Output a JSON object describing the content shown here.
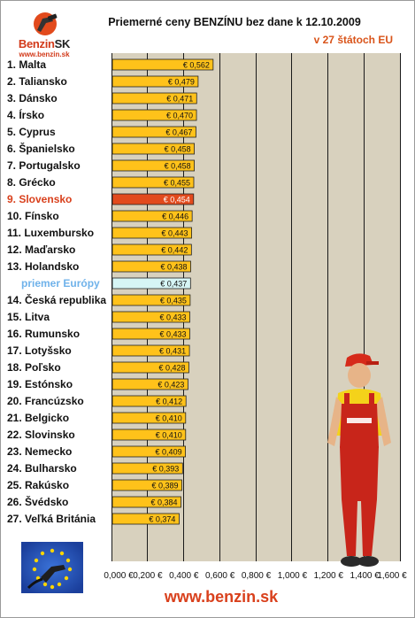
{
  "header": {
    "logo_brand": "Benzin",
    "logo_brand_suffix": "SK",
    "logo_url": "www.benzin.sk",
    "title": "Priemerné ceny BENZÍNU bez dane k 12.10.2009",
    "subtitle": "v 27 štátoch EU"
  },
  "footer": {
    "url": "www.benzin.sk"
  },
  "colors": {
    "bar": "#ffc21a",
    "bar_highlight": "#e24a1c",
    "bar_average": "#d6f5f5",
    "plot_bg": "#d8d1be",
    "highlight_text": "#d9401c",
    "average_text": "#6fb2ea"
  },
  "icons": [
    "benzin-logo-icon",
    "eu-flag-fuel-nozzle-icon",
    "mechanic-mascot-icon"
  ],
  "chart_data": {
    "type": "bar",
    "orientation": "horizontal",
    "title": "Priemerné ceny BENZÍNU bez dane k 12.10.2009",
    "subtitle": "v 27 štátoch EU",
    "categories": [
      "1. Malta",
      "2. Taliansko",
      "3. Dánsko",
      "4. Írsko",
      "5. Cyprus",
      "6. Španielsko",
      "7. Portugalsko",
      "8. Grécko",
      "9. Slovensko",
      "10. Fínsko",
      "11. Luxembursko",
      "12. Maďarsko",
      "13. Holandsko",
      "priemer Európy",
      "14. Česká republika",
      "15. Litva",
      "16. Rumunsko",
      "17. Lotyšsko",
      "18. Poľsko",
      "19. Estónsko",
      "20. Francúzsko",
      "21. Belgicko",
      "22. Slovinsko",
      "23. Nemecko",
      "24. Bulharsko",
      "25. Rakúsko",
      "26. Švédsko",
      "27. Veľká Británia"
    ],
    "values": [
      0.562,
      0.479,
      0.471,
      0.47,
      0.467,
      0.458,
      0.458,
      0.455,
      0.454,
      0.446,
      0.443,
      0.442,
      0.438,
      0.437,
      0.435,
      0.433,
      0.433,
      0.431,
      0.428,
      0.423,
      0.412,
      0.41,
      0.41,
      0.409,
      0.393,
      0.389,
      0.384,
      0.374
    ],
    "value_labels": [
      "€ 0,562",
      "€ 0,479",
      "€ 0,471",
      "€ 0,470",
      "€ 0,467",
      "€ 0,458",
      "€ 0,458",
      "€ 0,455",
      "€ 0,454",
      "€ 0,446",
      "€ 0,443",
      "€ 0,442",
      "€ 0,438",
      "€ 0,437",
      "€ 0,435",
      "€ 0,433",
      "€ 0,433",
      "€ 0,431",
      "€ 0,428",
      "€ 0,423",
      "€ 0,412",
      "€ 0,410",
      "€ 0,410",
      "€ 0,409",
      "€ 0,393",
      "€ 0,389",
      "€ 0,384",
      "€ 0,374"
    ],
    "highlight_index": 8,
    "average_index": 13,
    "xlim": [
      0,
      1.6
    ],
    "x_ticks": [
      0,
      0.2,
      0.4,
      0.6,
      0.8,
      1.0,
      1.2,
      1.4,
      1.6
    ],
    "x_tick_labels": [
      "0,000 €",
      "0,200 €",
      "0,400 €",
      "0,600 €",
      "0,800 €",
      "1,000 €",
      "1,200 €",
      "1,400 €",
      "1,600 €"
    ],
    "grid": "vertical"
  }
}
